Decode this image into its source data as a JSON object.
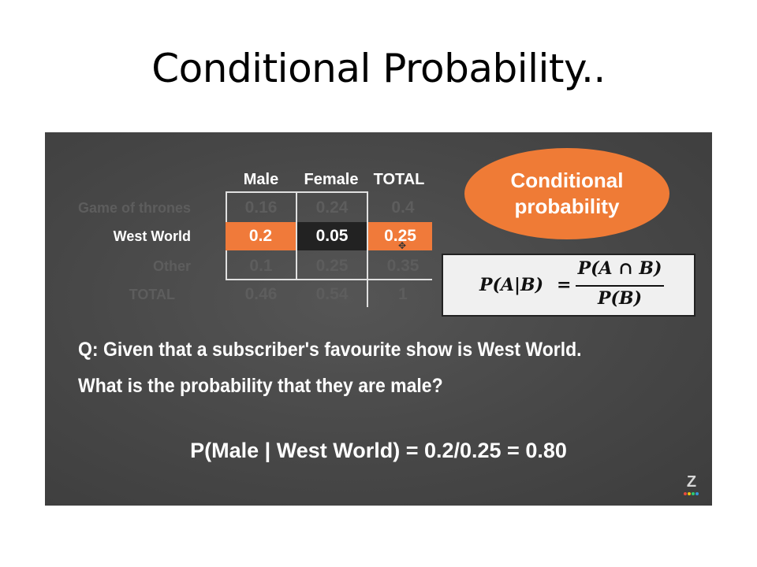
{
  "slide": {
    "title": "Conditional Probability.."
  },
  "table": {
    "columns": [
      "Male",
      "Female",
      "TOTAL"
    ],
    "rows": [
      {
        "label": "Game of thrones",
        "values": [
          "0.16",
          "0.24",
          "0.4"
        ]
      },
      {
        "label": "West World",
        "values": [
          "0.2",
          "0.05",
          "0.25"
        ]
      },
      {
        "label": "Other",
        "values": [
          "0.1",
          "0.25",
          "0.35"
        ]
      },
      {
        "label": "TOTAL",
        "values": [
          "0.46",
          "0.54",
          "1"
        ]
      }
    ],
    "highlight_row": "West World"
  },
  "bubble": {
    "line1": "Conditional",
    "line2": "probability",
    "color": "#ef7b36"
  },
  "formula": {
    "lhs": "P(A|B)",
    "eq": "=",
    "numerator": "P(A ∩ B)",
    "denominator": "P(B)"
  },
  "question": {
    "line1": "Q: Given that a subscriber's favourite show is West World.",
    "line2": "What is the probability that they are male?"
  },
  "answer": "P(Male | West World) = 0.2/0.25 = 0.80",
  "logo": {
    "letter": "Z"
  },
  "colors": {
    "accent": "#f07a3a",
    "board": "#474747"
  }
}
